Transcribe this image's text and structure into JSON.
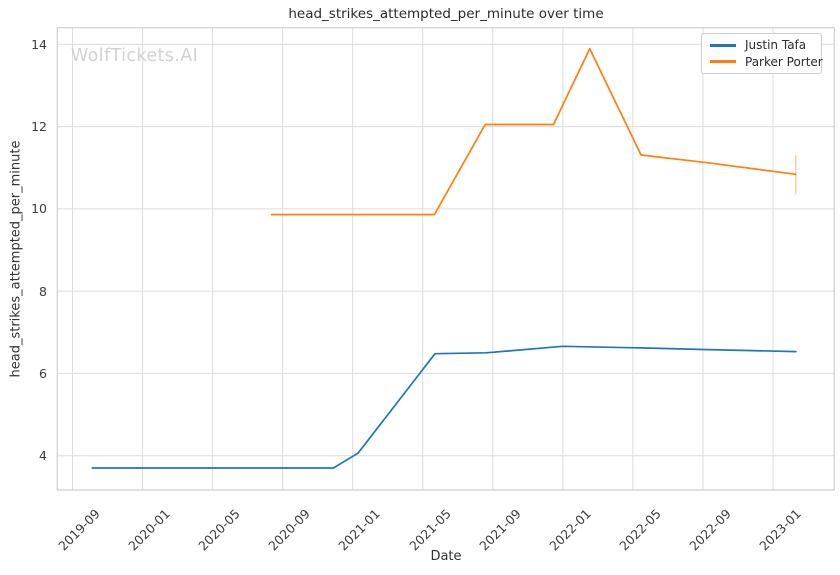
{
  "chart_data": {
    "type": "line",
    "title": "head_strikes_attempted_per_minute over time",
    "xlabel": "Date",
    "ylabel": "head_strikes_attempted_per_minute",
    "watermark": "WolfTickets.AI",
    "grid": true,
    "legend_position": "upper right",
    "x_ticks": [
      "2019-09",
      "2020-01",
      "2020-05",
      "2020-09",
      "2021-01",
      "2021-05",
      "2021-09",
      "2022-01",
      "2022-05",
      "2022-09",
      "2023-01"
    ],
    "y_ticks": [
      4,
      6,
      8,
      10,
      12,
      14
    ],
    "ylim": [
      3.17,
      14.4
    ],
    "xlim": [
      "2019-08-04",
      "2023-04-15"
    ],
    "series": [
      {
        "name": "Justin Tafa",
        "color": "#1f77b4",
        "points": [
          [
            "2019-10-05",
            3.7
          ],
          [
            "2020-11-28",
            3.7
          ],
          [
            "2021-01-10",
            4.06
          ],
          [
            "2021-05-22",
            6.48
          ],
          [
            "2021-08-20",
            6.5
          ],
          [
            "2022-01-01",
            6.66
          ],
          [
            "2022-05-14",
            6.62
          ],
          [
            "2022-09-10",
            6.58
          ],
          [
            "2023-02-10",
            6.53
          ]
        ]
      },
      {
        "name": "Parker Porter",
        "color": "#ff7f0e",
        "points": [
          [
            "2020-08-12",
            9.86
          ],
          [
            "2021-05-21",
            9.86
          ],
          [
            "2021-08-18",
            12.05
          ],
          [
            "2021-12-15",
            12.05
          ],
          [
            "2022-02-17",
            13.89
          ],
          [
            "2022-05-15",
            11.31
          ],
          [
            "2022-09-10",
            11.12
          ],
          [
            "2023-02-10",
            10.84
          ]
        ],
        "last_point_error_bar": {
          "low": 10.35,
          "high": 11.3
        }
      }
    ],
    "style": {
      "grid_color": "#dcdcdc",
      "spine_color": "#cfcfcf",
      "background": "#ffffff"
    }
  }
}
